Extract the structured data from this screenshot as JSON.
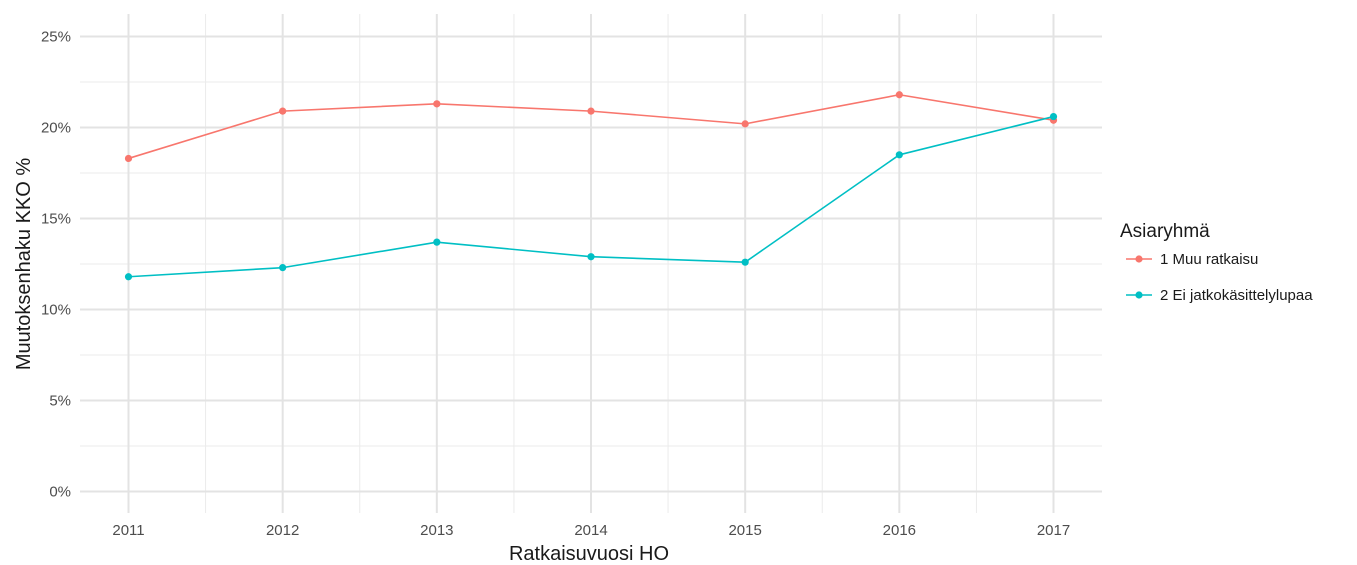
{
  "chart_data": {
    "type": "line",
    "title": "",
    "xlabel": "Ratkaisuvuosi HO",
    "ylabel": "Muutoksenhaku KKO %",
    "x": [
      2011,
      2012,
      2013,
      2014,
      2015,
      2016,
      2017
    ],
    "x_tick_labels": [
      "2011",
      "2012",
      "2013",
      "2014",
      "2015",
      "2016",
      "2017"
    ],
    "ylim": [
      0,
      25
    ],
    "y_ticks": [
      0,
      5,
      10,
      15,
      20,
      25
    ],
    "y_tick_labels": [
      "0%",
      "5%",
      "10%",
      "15%",
      "20%",
      "25%"
    ],
    "grid": true,
    "legend": {
      "title": "Asiaryhmä",
      "position": "right"
    },
    "series": [
      {
        "name": "1 Muu ratkaisu",
        "color": "#F8766D",
        "values": [
          18.3,
          20.9,
          21.3,
          20.9,
          20.2,
          21.8,
          20.4
        ]
      },
      {
        "name": "2 Ei jatkokäsittelylupaa",
        "color": "#00BFC4",
        "values": [
          11.8,
          12.3,
          13.7,
          12.9,
          12.6,
          18.5,
          20.6
        ]
      }
    ]
  }
}
